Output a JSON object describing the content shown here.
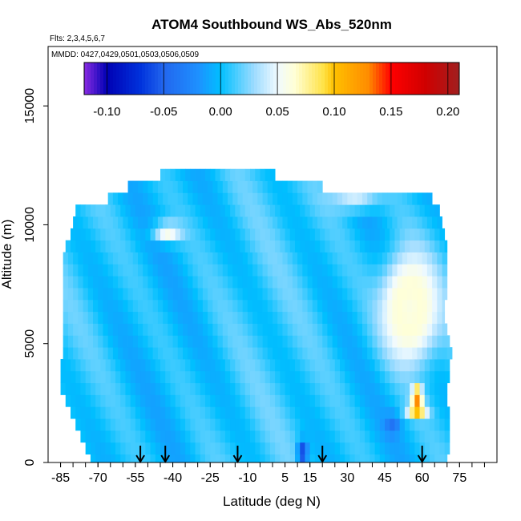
{
  "chart_data": {
    "type": "heatmap",
    "title": "ATOM4 Southbound WS_Abs_520nm",
    "flights_label": "Flts: 2,3,4,5,6,7",
    "dates_label": "MMDD: 0427,0429,0501,0503,0506,0509",
    "xlabel": "Latitude (deg N)",
    "ylabel": "Altitude (m)",
    "xlim": [
      -90,
      90
    ],
    "ylim": [
      0,
      17500
    ],
    "x_ticks": [
      -85,
      -70,
      -55,
      -40,
      -25,
      -10,
      5,
      15,
      30,
      45,
      60,
      75
    ],
    "x_tick_labels": [
      "-85",
      "-70",
      "-55",
      "-40",
      "-25",
      "-10",
      "5",
      "15",
      "30",
      "45",
      "60",
      "75"
    ],
    "x_minor_tick_step": 5,
    "y_ticks": [
      0,
      5000,
      10000,
      15000
    ],
    "y_tick_labels": [
      "0",
      "5000",
      "10000",
      "15000"
    ],
    "colorbar": {
      "range": [
        -0.12,
        0.21
      ],
      "ticks": [
        -0.1,
        -0.05,
        0.0,
        0.05,
        0.1,
        0.15,
        0.2
      ],
      "tick_labels": [
        "-0.10",
        "-0.05",
        "0.00",
        "0.05",
        "0.10",
        "0.15",
        "0.20"
      ],
      "stops": [
        {
          "v": -0.12,
          "color": "#8a2be2"
        },
        {
          "v": -0.1,
          "color": "#0000b4"
        },
        {
          "v": -0.07,
          "color": "#0033dd"
        },
        {
          "v": -0.05,
          "color": "#2266ee"
        },
        {
          "v": -0.02,
          "color": "#1e90ff"
        },
        {
          "v": 0.0,
          "color": "#00bfff"
        },
        {
          "v": 0.03,
          "color": "#9fdcff"
        },
        {
          "v": 0.05,
          "color": "#f0faff"
        },
        {
          "v": 0.065,
          "color": "#ffffd6"
        },
        {
          "v": 0.09,
          "color": "#ffe34a"
        },
        {
          "v": 0.1,
          "color": "#ffc000"
        },
        {
          "v": 0.13,
          "color": "#ff8c00"
        },
        {
          "v": 0.15,
          "color": "#ff0000"
        },
        {
          "v": 0.18,
          "color": "#d00000"
        },
        {
          "v": 0.21,
          "color": "#a02020"
        }
      ]
    },
    "field": {
      "background_value": 0.005,
      "features": [
        {
          "lat": 55,
          "alt": 6500,
          "lat_width": 8,
          "alt_width": 1600,
          "value": 0.13
        },
        {
          "lat": 55,
          "alt": 6500,
          "lat_width": 12,
          "alt_width": 2400,
          "value": 0.06
        },
        {
          "lat": -42,
          "alt": 9700,
          "lat_width": 6,
          "alt_width": 400,
          "value": 0.06
        },
        {
          "lat": 58,
          "alt": 2800,
          "lat_width": 2,
          "alt_width": 300,
          "value": 0.2
        },
        {
          "lat": 58,
          "alt": 2200,
          "lat_width": 4,
          "alt_width": 300,
          "value": 0.11
        },
        {
          "lat": 33,
          "alt": 11000,
          "lat_width": 10,
          "alt_width": 400,
          "value": 0.045
        },
        {
          "lat": 12,
          "alt": 400,
          "lat_width": 2,
          "alt_width": 500,
          "value": -0.07
        },
        {
          "lat": 48,
          "alt": 1600,
          "lat_width": 3,
          "alt_width": 400,
          "value": -0.04
        }
      ],
      "profile_rows": [
        {
          "alt_bottom": 0,
          "alt_top": 350,
          "lat_min": -73,
          "lat_max": 70
        },
        {
          "alt_bottom": 350,
          "alt_top": 850,
          "lat_min": -75,
          "lat_max": 71
        },
        {
          "alt_bottom": 850,
          "alt_top": 1350,
          "lat_min": -77,
          "lat_max": 71
        },
        {
          "alt_bottom": 1350,
          "alt_top": 1850,
          "lat_min": -79,
          "lat_max": 71
        },
        {
          "alt_bottom": 1850,
          "alt_top": 2350,
          "lat_min": -81,
          "lat_max": 71
        },
        {
          "alt_bottom": 2350,
          "alt_top": 2850,
          "lat_min": -83,
          "lat_max": 70
        },
        {
          "alt_bottom": 2850,
          "alt_top": 3350,
          "lat_min": -85,
          "lat_max": 70
        },
        {
          "alt_bottom": 3350,
          "alt_top": 3850,
          "lat_min": -85,
          "lat_max": 71
        },
        {
          "alt_bottom": 3850,
          "alt_top": 4350,
          "lat_min": -85,
          "lat_max": 71
        },
        {
          "alt_bottom": 4350,
          "alt_top": 4850,
          "lat_min": -84,
          "lat_max": 72
        },
        {
          "alt_bottom": 4850,
          "alt_top": 5350,
          "lat_min": -84,
          "lat_max": 71
        },
        {
          "alt_bottom": 5350,
          "alt_top": 5850,
          "lat_min": -84,
          "lat_max": 70
        },
        {
          "alt_bottom": 5850,
          "alt_top": 6350,
          "lat_min": -84,
          "lat_max": 69
        },
        {
          "alt_bottom": 6350,
          "alt_top": 6850,
          "lat_min": -84,
          "lat_max": 69
        },
        {
          "alt_bottom": 6850,
          "alt_top": 7350,
          "lat_min": -84,
          "lat_max": 70
        },
        {
          "alt_bottom": 7350,
          "alt_top": 7850,
          "lat_min": -84,
          "lat_max": 70
        },
        {
          "alt_bottom": 7850,
          "alt_top": 8350,
          "lat_min": -84,
          "lat_max": 70
        },
        {
          "alt_bottom": 8350,
          "alt_top": 8850,
          "lat_min": -84,
          "lat_max": 70
        },
        {
          "alt_bottom": 8850,
          "alt_top": 9350,
          "lat_min": -83,
          "lat_max": 70
        },
        {
          "alt_bottom": 9350,
          "alt_top": 9850,
          "lat_min": -81,
          "lat_max": 69
        },
        {
          "alt_bottom": 9850,
          "alt_top": 10350,
          "lat_min": -80,
          "lat_max": 68
        },
        {
          "alt_bottom": 10350,
          "alt_top": 10850,
          "lat_min": -79,
          "lat_max": 67
        },
        {
          "alt_bottom": 10850,
          "alt_top": 11350,
          "lat_min": -66,
          "lat_max": 64
        },
        {
          "alt_bottom": 11350,
          "alt_top": 11850,
          "lat_min": -58,
          "lat_max": 20
        },
        {
          "alt_bottom": 11850,
          "alt_top": 12350,
          "lat_min": -45,
          "lat_max": 1
        }
      ]
    },
    "profile_arrows": {
      "latitudes": [
        -53,
        -43,
        -14,
        20,
        60
      ]
    }
  }
}
